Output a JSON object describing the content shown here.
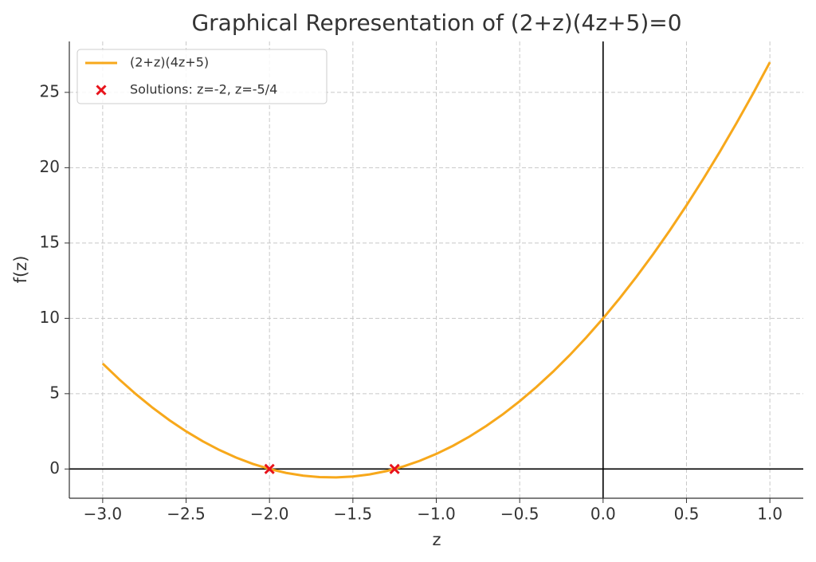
{
  "chart_data": {
    "type": "line",
    "title": "Graphical Representation of (2+z)(4z+5)=0",
    "x_label": "z",
    "y_label": "f(z)",
    "xlim": [
      -3.2,
      1.2
    ],
    "ylim": [
      -1.94,
      28.38
    ],
    "xticks": [
      {
        "value": -3,
        "label": "−3.0"
      },
      {
        "value": -2.5,
        "label": "−2.5"
      },
      {
        "value": -2,
        "label": "−2.0"
      },
      {
        "value": -1.5,
        "label": "−1.5"
      },
      {
        "value": -1,
        "label": "−1.0"
      },
      {
        "value": -0.5,
        "label": "−0.5"
      },
      {
        "value": 0,
        "label": "0.0"
      },
      {
        "value": 0.5,
        "label": "0.5"
      },
      {
        "value": 1,
        "label": "1.0"
      }
    ],
    "yticks": [
      0,
      5,
      10,
      15,
      20,
      25
    ],
    "grid": true,
    "zero_lines": true,
    "legend": "upper left",
    "series": [
      {
        "name": "(2+z)(4z+5)",
        "type": "line",
        "color": "#f7a81b",
        "x": [
          -3,
          -2.9,
          -2.8,
          -2.7,
          -2.6,
          -2.5,
          -2.4,
          -2.3,
          -2.2,
          -2.1,
          -2,
          -1.9,
          -1.8,
          -1.7,
          -1.6,
          -1.5,
          -1.4,
          -1.3,
          -1.2,
          -1.1,
          -1,
          -0.9,
          -0.8,
          -0.7,
          -0.6,
          -0.5,
          -0.4,
          -0.3,
          -0.2,
          -0.1,
          0,
          0.1,
          0.2,
          0.3,
          0.4,
          0.5,
          0.6,
          0.7,
          0.8,
          0.9,
          1
        ],
        "values": [
          7,
          5.94,
          4.96,
          4.06,
          3.24,
          2.5,
          1.84,
          1.26,
          0.76,
          0.34,
          0,
          -0.26,
          -0.44,
          -0.54,
          -0.56,
          -0.5,
          -0.36,
          -0.14,
          0.16,
          0.54,
          1,
          1.54,
          2.16,
          2.86,
          3.64,
          4.5,
          5.44,
          6.46,
          7.56,
          8.74,
          10,
          11.34,
          12.76,
          14.26,
          15.84,
          17.5,
          19.24,
          21.06,
          22.96,
          24.94,
          27
        ]
      },
      {
        "name": "Solutions: z=-2, z=-5/4",
        "type": "scatter",
        "marker": "x",
        "color": "#e8131b",
        "x": [
          -2,
          -1.25
        ],
        "values": [
          0,
          0
        ]
      }
    ]
  }
}
